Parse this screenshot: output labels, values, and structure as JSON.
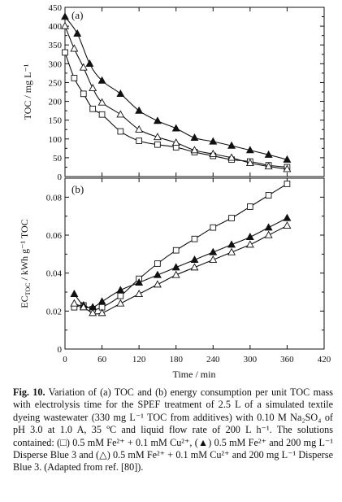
{
  "chart_data": [
    {
      "panel": "(a)",
      "type": "line",
      "ylabel": "TOC / mg L⁻¹",
      "xlim": [
        0,
        420
      ],
      "ylim": [
        0,
        450
      ],
      "xticks": [
        0,
        60,
        120,
        180,
        240,
        300,
        360,
        420
      ],
      "yticks": [
        0,
        25,
        50,
        75,
        100,
        125,
        150,
        175,
        200,
        225,
        250,
        275,
        300,
        325,
        350,
        375,
        400,
        425,
        450
      ],
      "ytick_labels": [
        "0",
        "",
        "50",
        "",
        "100",
        "",
        "150",
        "",
        "200",
        "",
        "250",
        "",
        "300",
        "",
        "350",
        "",
        "400",
        "",
        "450"
      ],
      "x_tick_labels_shown": false,
      "series": [
        {
          "marker": "square",
          "x": [
            0,
            15,
            30,
            45,
            60,
            90,
            120,
            150,
            180,
            210,
            240,
            270,
            300,
            330,
            360
          ],
          "values": [
            330,
            262,
            220,
            180,
            165,
            120,
            95,
            85,
            78,
            65,
            55,
            45,
            40,
            30,
            25
          ]
        },
        {
          "marker": "triangle-filled",
          "x": [
            0,
            20,
            40,
            60,
            90,
            120,
            150,
            180,
            210,
            240,
            270,
            300,
            330,
            360
          ],
          "values": [
            425,
            380,
            300,
            255,
            220,
            175,
            148,
            128,
            103,
            93,
            82,
            70,
            58,
            45
          ]
        },
        {
          "marker": "triangle-open",
          "x": [
            0,
            15,
            30,
            45,
            60,
            90,
            120,
            150,
            180,
            210,
            240,
            270,
            300,
            330,
            360
          ],
          "values": [
            400,
            340,
            290,
            235,
            197,
            165,
            125,
            105,
            90,
            70,
            60,
            50,
            36,
            27,
            20
          ]
        }
      ]
    },
    {
      "panel": "(b)",
      "type": "line",
      "xlabel": "Time / min",
      "ylabel_main": "EC",
      "ylabel_sub": "TOC",
      "ylabel_rest": " / kWh g⁻¹ TOC",
      "xlim": [
        0,
        420
      ],
      "ylim": [
        0,
        0.09
      ],
      "xticks": [
        0,
        60,
        120,
        180,
        240,
        300,
        360,
        420
      ],
      "xtick_labels": [
        "0",
        "60",
        "120",
        "180",
        "240",
        "300",
        "360",
        "420"
      ],
      "yticks": [
        0,
        0.01,
        0.02,
        0.03,
        0.04,
        0.05,
        0.06,
        0.07,
        0.08,
        0.09
      ],
      "ytick_labels": [
        "0",
        "",
        "0.02",
        "",
        "0.04",
        "",
        "0.06",
        "",
        "0.08",
        ""
      ],
      "series": [
        {
          "marker": "square",
          "x": [
            15,
            30,
            45,
            60,
            90,
            120,
            150,
            180,
            210,
            240,
            270,
            300,
            330,
            360
          ],
          "values": [
            0.022,
            0.023,
            0.021,
            0.022,
            0.028,
            0.037,
            0.045,
            0.052,
            0.058,
            0.064,
            0.069,
            0.075,
            0.081,
            0.087
          ]
        },
        {
          "marker": "triangle-filled",
          "x": [
            15,
            30,
            45,
            60,
            90,
            120,
            150,
            180,
            210,
            240,
            270,
            300,
            330,
            360
          ],
          "values": [
            0.029,
            0.023,
            0.022,
            0.025,
            0.031,
            0.035,
            0.039,
            0.043,
            0.047,
            0.051,
            0.055,
            0.059,
            0.064,
            0.069
          ]
        },
        {
          "marker": "triangle-open",
          "x": [
            15,
            30,
            45,
            60,
            90,
            120,
            150,
            180,
            210,
            240,
            270,
            300,
            330,
            360
          ],
          "values": [
            0.024,
            0.022,
            0.019,
            0.019,
            0.024,
            0.029,
            0.034,
            0.039,
            0.043,
            0.047,
            0.051,
            0.055,
            0.06,
            0.065
          ]
        }
      ]
    }
  ],
  "caption": {
    "fig_label": "Fig. 10.",
    "text": "Variation of (a) TOC and (b) energy consumption per unit TOC mass with electrolysis time for the SPEF treatment of 2.5 L of a simulated textile dyeing wastewater (330 mg L⁻¹ TOC from additives) with 0.10 M Na₂SO₄ of pH 3.0 at 1.0 A, 35 ºC and liquid flow rate of 200 L h⁻¹. The solutions contained: (□) 0.5 mM Fe²⁺ + 0.1 mM Cu²⁺, (▲) 0.5 mM Fe²⁺ and 200 mg L⁻¹ Disperse Blue 3 and (△) 0.5 mM Fe²⁺ + 0.1 mM Cu²⁺ and 200 mg L⁻¹ Disperse Blue 3. (Adapted from ref. [80])."
  }
}
